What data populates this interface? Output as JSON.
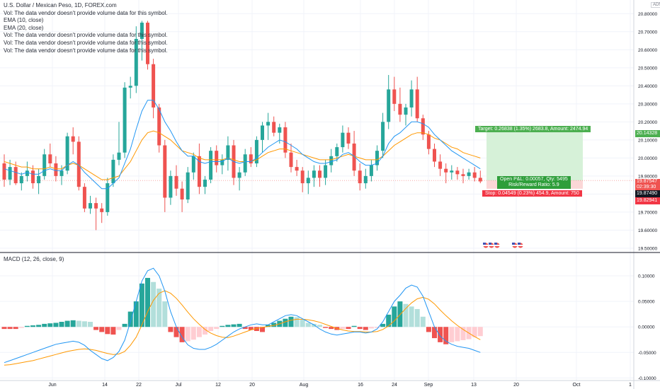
{
  "legend": {
    "title": "U.S. Dollar / Mexican Peso, 1D, FOREX.com",
    "lines": [
      "Vol: The data vendor doesn't provide volume data for this symbol.",
      "EMA (10, close)",
      "EMA (20, close)",
      "Vol: The data vendor doesn't provide volume data for this symbol.",
      "Vol: The data vendor doesn't provide volume data for this symbol.",
      "Vol: The data vendor doesn't provide volume data for this symbol."
    ],
    "macd_title": "MACD (12, 26, close, 9)"
  },
  "axis_tag": "ADN",
  "price_axis": {
    "ticks": [
      "20.80000",
      "20.70000",
      "20.60000",
      "20.50000",
      "20.40000",
      "20.30000",
      "20.20000",
      "20.10000",
      "20.00000",
      "19.90000",
      "19.80000",
      "19.70000",
      "19.60000",
      "19.50000"
    ],
    "current_price": "19.87547",
    "countdown": "02:39:30",
    "last_dark": "19.87490",
    "target_price": "20.14328",
    "stop_price": "19.82941"
  },
  "macd_axis": {
    "ticks": [
      "0.10000",
      "0.05000",
      "0.00000",
      "-0.05000",
      "-0.10000"
    ]
  },
  "time_axis": {
    "labels": [
      "Jun",
      "14",
      "22",
      "Jul",
      "12",
      "20",
      "Aug",
      "16",
      "24",
      "Sep",
      "13",
      "20",
      "Oct",
      "1"
    ]
  },
  "position": {
    "target": "Target: 0.26838 (1.35%) 2683.8, Amount: 2474.94",
    "open_pl": "Open P&L: 0.00057, Qty: 5495",
    "rr": "Risk/Reward Ratio: 5.9",
    "stop": "Stop: 0.04549 (0.23%) 454.9, Amount: 750"
  },
  "colors": {
    "up": "#26a69a",
    "down": "#ef5350",
    "ema10": "#2196f3",
    "ema20": "#ff9800",
    "macd_line": "#2196f3",
    "signal_line": "#ff9800",
    "hist_up_strong": "#26a69a",
    "hist_up_weak": "#b2dfdb",
    "hist_down_strong": "#ef5350",
    "hist_down_weak": "#ffcdd2",
    "target_zone": "#d6f1d8",
    "stop_zone": "#fbd7d7"
  },
  "chart_data": [
    {
      "type": "candlestick",
      "title": "U.S. Dollar / Mexican Peso, 1D, FOREX.com",
      "ylim": [
        19.48,
        20.86
      ],
      "candles": [
        {
          "o": 19.97,
          "h": 20.02,
          "l": 19.84,
          "c": 19.88
        },
        {
          "o": 19.88,
          "h": 19.99,
          "l": 19.85,
          "c": 19.95
        },
        {
          "o": 19.95,
          "h": 19.98,
          "l": 19.85,
          "c": 19.86
        },
        {
          "o": 19.86,
          "h": 19.92,
          "l": 19.82,
          "c": 19.9
        },
        {
          "o": 19.9,
          "h": 19.98,
          "l": 19.87,
          "c": 19.93
        },
        {
          "o": 19.93,
          "h": 19.96,
          "l": 19.83,
          "c": 19.86
        },
        {
          "o": 19.86,
          "h": 19.94,
          "l": 19.8,
          "c": 19.9
        },
        {
          "o": 19.9,
          "h": 20.05,
          "l": 19.88,
          "c": 20.02
        },
        {
          "o": 20.02,
          "h": 20.08,
          "l": 19.95,
          "c": 19.97
        },
        {
          "o": 19.97,
          "h": 20.01,
          "l": 19.87,
          "c": 19.9
        },
        {
          "o": 19.9,
          "h": 19.96,
          "l": 19.85,
          "c": 19.93
        },
        {
          "o": 19.93,
          "h": 20.14,
          "l": 19.91,
          "c": 20.12
        },
        {
          "o": 20.12,
          "h": 20.17,
          "l": 20.02,
          "c": 20.09
        },
        {
          "o": 20.09,
          "h": 20.12,
          "l": 19.82,
          "c": 19.84
        },
        {
          "o": 19.84,
          "h": 19.86,
          "l": 19.7,
          "c": 19.72
        },
        {
          "o": 19.72,
          "h": 19.79,
          "l": 19.69,
          "c": 19.75
        },
        {
          "o": 19.75,
          "h": 19.78,
          "l": 19.6,
          "c": 19.72
        },
        {
          "o": 19.72,
          "h": 19.75,
          "l": 19.64,
          "c": 19.7
        },
        {
          "o": 19.7,
          "h": 19.89,
          "l": 19.68,
          "c": 19.86
        },
        {
          "o": 19.86,
          "h": 20.02,
          "l": 19.84,
          "c": 19.99
        },
        {
          "o": 19.99,
          "h": 20.2,
          "l": 19.96,
          "c": 20.03
        },
        {
          "o": 20.03,
          "h": 20.42,
          "l": 20.0,
          "c": 20.39
        },
        {
          "o": 20.39,
          "h": 20.45,
          "l": 20.33,
          "c": 20.4
        },
        {
          "o": 20.4,
          "h": 20.73,
          "l": 20.36,
          "c": 20.66
        },
        {
          "o": 20.66,
          "h": 20.76,
          "l": 20.54,
          "c": 20.75
        },
        {
          "o": 20.75,
          "h": 20.76,
          "l": 20.49,
          "c": 20.52
        },
        {
          "o": 20.52,
          "h": 20.55,
          "l": 20.22,
          "c": 20.28
        },
        {
          "o": 20.28,
          "h": 20.3,
          "l": 20.03,
          "c": 20.07
        },
        {
          "o": 20.07,
          "h": 20.1,
          "l": 19.7,
          "c": 19.78
        },
        {
          "o": 19.78,
          "h": 19.93,
          "l": 19.74,
          "c": 19.9
        },
        {
          "o": 19.9,
          "h": 19.96,
          "l": 19.79,
          "c": 19.83
        },
        {
          "o": 19.83,
          "h": 19.87,
          "l": 19.7,
          "c": 19.77
        },
        {
          "o": 19.77,
          "h": 19.95,
          "l": 19.75,
          "c": 19.92
        },
        {
          "o": 19.92,
          "h": 20.03,
          "l": 19.88,
          "c": 20.01
        },
        {
          "o": 20.01,
          "h": 20.08,
          "l": 19.8,
          "c": 19.84
        },
        {
          "o": 19.84,
          "h": 19.9,
          "l": 19.8,
          "c": 19.88
        },
        {
          "o": 19.88,
          "h": 20.06,
          "l": 19.86,
          "c": 20.04
        },
        {
          "o": 20.04,
          "h": 20.07,
          "l": 19.92,
          "c": 19.96
        },
        {
          "o": 19.96,
          "h": 20.02,
          "l": 19.91,
          "c": 19.99
        },
        {
          "o": 19.99,
          "h": 20.12,
          "l": 19.93,
          "c": 20.07
        },
        {
          "o": 20.07,
          "h": 20.1,
          "l": 19.85,
          "c": 19.89
        },
        {
          "o": 19.89,
          "h": 19.95,
          "l": 19.82,
          "c": 19.92
        },
        {
          "o": 19.92,
          "h": 20.05,
          "l": 19.9,
          "c": 20.02
        },
        {
          "o": 20.02,
          "h": 20.06,
          "l": 19.95,
          "c": 19.97
        },
        {
          "o": 19.97,
          "h": 20.12,
          "l": 19.95,
          "c": 20.1
        },
        {
          "o": 20.1,
          "h": 20.2,
          "l": 20.03,
          "c": 20.18
        },
        {
          "o": 20.18,
          "h": 20.25,
          "l": 20.1,
          "c": 20.2
        },
        {
          "o": 20.2,
          "h": 20.23,
          "l": 20.12,
          "c": 20.14
        },
        {
          "o": 20.14,
          "h": 20.19,
          "l": 20.08,
          "c": 20.17
        },
        {
          "o": 20.17,
          "h": 20.2,
          "l": 20.0,
          "c": 20.03
        },
        {
          "o": 20.03,
          "h": 20.08,
          "l": 19.92,
          "c": 19.95
        },
        {
          "o": 19.95,
          "h": 19.99,
          "l": 19.9,
          "c": 19.93
        },
        {
          "o": 19.93,
          "h": 19.95,
          "l": 19.81,
          "c": 19.86
        },
        {
          "o": 19.86,
          "h": 19.93,
          "l": 19.8,
          "c": 19.89
        },
        {
          "o": 19.89,
          "h": 19.96,
          "l": 19.84,
          "c": 19.93
        },
        {
          "o": 19.93,
          "h": 19.96,
          "l": 19.84,
          "c": 19.89
        },
        {
          "o": 19.89,
          "h": 19.99,
          "l": 19.85,
          "c": 19.96
        },
        {
          "o": 19.96,
          "h": 20.05,
          "l": 19.92,
          "c": 20.01
        },
        {
          "o": 20.01,
          "h": 20.08,
          "l": 19.98,
          "c": 20.06
        },
        {
          "o": 20.06,
          "h": 20.18,
          "l": 20.03,
          "c": 20.14
        },
        {
          "o": 20.14,
          "h": 20.17,
          "l": 20.05,
          "c": 20.08
        },
        {
          "o": 20.08,
          "h": 20.15,
          "l": 19.9,
          "c": 19.93
        },
        {
          "o": 19.93,
          "h": 19.97,
          "l": 19.82,
          "c": 19.86
        },
        {
          "o": 19.86,
          "h": 19.94,
          "l": 19.83,
          "c": 19.9
        },
        {
          "o": 19.9,
          "h": 19.99,
          "l": 19.87,
          "c": 19.96
        },
        {
          "o": 19.96,
          "h": 20.07,
          "l": 19.93,
          "c": 20.04
        },
        {
          "o": 20.04,
          "h": 20.25,
          "l": 20.0,
          "c": 20.2
        },
        {
          "o": 20.2,
          "h": 20.46,
          "l": 20.16,
          "c": 20.38
        },
        {
          "o": 20.38,
          "h": 20.45,
          "l": 20.26,
          "c": 20.3
        },
        {
          "o": 20.3,
          "h": 20.39,
          "l": 20.2,
          "c": 20.24
        },
        {
          "o": 20.24,
          "h": 20.3,
          "l": 20.18,
          "c": 20.28
        },
        {
          "o": 20.28,
          "h": 20.43,
          "l": 20.23,
          "c": 20.38
        },
        {
          "o": 20.38,
          "h": 20.45,
          "l": 20.2,
          "c": 20.22
        },
        {
          "o": 20.22,
          "h": 20.24,
          "l": 20.1,
          "c": 20.13
        },
        {
          "o": 20.13,
          "h": 20.15,
          "l": 20.02,
          "c": 20.05
        },
        {
          "o": 20.05,
          "h": 20.08,
          "l": 19.95,
          "c": 19.98
        },
        {
          "o": 19.98,
          "h": 20.02,
          "l": 19.9,
          "c": 19.94
        },
        {
          "o": 19.94,
          "h": 19.97,
          "l": 19.86,
          "c": 19.92
        },
        {
          "o": 19.92,
          "h": 19.96,
          "l": 19.88,
          "c": 19.93
        },
        {
          "o": 19.93,
          "h": 19.95,
          "l": 19.88,
          "c": 19.91
        },
        {
          "o": 19.91,
          "h": 19.94,
          "l": 19.86,
          "c": 19.9
        },
        {
          "o": 19.9,
          "h": 19.94,
          "l": 19.88,
          "c": 19.92
        },
        {
          "o": 19.92,
          "h": 19.95,
          "l": 19.87,
          "c": 19.89
        },
        {
          "o": 19.89,
          "h": 19.93,
          "l": 19.86,
          "c": 19.87
        }
      ],
      "ema10": [
        19.94,
        19.93,
        19.92,
        19.91,
        19.92,
        19.91,
        19.91,
        19.93,
        19.94,
        19.93,
        19.93,
        19.96,
        19.98,
        19.96,
        19.92,
        19.89,
        19.86,
        19.83,
        19.83,
        19.86,
        19.89,
        19.97,
        20.05,
        20.16,
        20.26,
        20.32,
        20.32,
        20.27,
        20.2,
        20.15,
        20.09,
        20.04,
        20.01,
        20.01,
        19.98,
        19.97,
        19.98,
        19.98,
        19.98,
        20.0,
        19.98,
        19.97,
        19.98,
        19.98,
        20.0,
        20.03,
        20.06,
        20.08,
        20.1,
        20.09,
        20.07,
        20.05,
        20.02,
        20.0,
        19.98,
        19.97,
        19.97,
        19.98,
        19.99,
        20.02,
        20.03,
        20.01,
        19.98,
        19.96,
        19.96,
        19.97,
        20.01,
        20.08,
        20.12,
        20.14,
        20.17,
        20.2,
        20.2,
        20.19,
        20.17,
        20.13,
        20.1,
        20.07,
        20.04,
        20.02,
        20.0,
        19.98,
        19.96,
        19.94
      ],
      "ema20": [
        19.98,
        19.97,
        19.96,
        19.95,
        19.95,
        19.94,
        19.94,
        19.94,
        19.95,
        19.94,
        19.94,
        19.96,
        19.97,
        19.96,
        19.94,
        19.92,
        19.9,
        19.88,
        19.88,
        19.89,
        19.9,
        19.94,
        19.98,
        20.04,
        20.1,
        20.14,
        20.15,
        20.14,
        20.12,
        20.1,
        20.07,
        20.04,
        20.03,
        20.02,
        20.0,
        19.99,
        19.99,
        19.99,
        19.99,
        20.0,
        19.99,
        19.98,
        19.98,
        19.98,
        19.99,
        20.01,
        20.03,
        20.04,
        20.05,
        20.05,
        20.04,
        20.03,
        20.02,
        20.01,
        20.0,
        19.99,
        19.99,
        19.99,
        20.0,
        20.01,
        20.02,
        20.01,
        20.0,
        19.99,
        19.99,
        19.99,
        20.01,
        20.04,
        20.07,
        20.09,
        20.11,
        20.13,
        20.14,
        20.14,
        20.13,
        20.11,
        20.1,
        20.08,
        20.06,
        20.05,
        20.03,
        20.02,
        20.01,
        20.0
      ]
    },
    {
      "type": "macd",
      "title": "MACD (12, 26, close, 9)",
      "ylim": [
        -0.105,
        0.125
      ],
      "histogram": [
        -0.004,
        -0.004,
        -0.004,
        -0.002,
        0.002,
        0.003,
        0.004,
        0.006,
        0.007,
        0.008,
        0.01,
        0.012,
        0.013,
        0.012,
        0.011,
        0.01,
        -0.006,
        -0.01,
        -0.014,
        -0.015,
        -0.006,
        0.006,
        0.03,
        0.05,
        0.085,
        0.096,
        0.088,
        0.075,
        0.05,
        -0.01,
        -0.02,
        -0.03,
        -0.028,
        -0.025,
        -0.02,
        -0.015,
        -0.008,
        -0.004,
        0.002,
        0.004,
        0.005,
        0.006,
        -0.004,
        -0.006,
        -0.008,
        -0.01,
        0.004,
        0.008,
        0.012,
        0.016,
        0.02,
        0.019,
        0.014,
        0.008,
        0.006,
        0.004,
        -0.002,
        -0.004,
        -0.006,
        -0.004,
        -0.004,
        0.002,
        -0.004,
        -0.006,
        -0.003,
        -0.002,
        0.006,
        0.024,
        0.04,
        0.05,
        0.045,
        0.04,
        0.035,
        0.02,
        -0.01,
        -0.022,
        -0.03,
        -0.034,
        -0.03,
        -0.028,
        -0.026,
        -0.024,
        -0.02,
        -0.018
      ],
      "macd": [
        -0.07,
        -0.066,
        -0.062,
        -0.058,
        -0.054,
        -0.05,
        -0.046,
        -0.042,
        -0.038,
        -0.034,
        -0.032,
        -0.03,
        -0.028,
        -0.03,
        -0.036,
        -0.046,
        -0.054,
        -0.062,
        -0.066,
        -0.06,
        -0.048,
        -0.026,
        0.01,
        0.05,
        0.09,
        0.11,
        0.115,
        0.1,
        0.07,
        0.03,
        0.0,
        -0.02,
        -0.035,
        -0.042,
        -0.044,
        -0.044,
        -0.04,
        -0.034,
        -0.026,
        -0.018,
        -0.01,
        -0.004,
        0.0,
        0.004,
        0.006,
        0.004,
        0.004,
        0.01,
        0.016,
        0.022,
        0.024,
        0.022,
        0.016,
        0.01,
        0.004,
        -0.004,
        -0.01,
        -0.014,
        -0.016,
        -0.014,
        -0.012,
        -0.01,
        -0.01,
        -0.012,
        -0.01,
        -0.004,
        0.01,
        0.03,
        0.05,
        0.062,
        0.076,
        0.082,
        0.078,
        0.06,
        0.03,
        0.0,
        -0.018,
        -0.028,
        -0.034,
        -0.038,
        -0.04,
        -0.042,
        -0.046,
        -0.05
      ],
      "signal": [
        -0.075,
        -0.074,
        -0.072,
        -0.07,
        -0.068,
        -0.066,
        -0.063,
        -0.06,
        -0.057,
        -0.054,
        -0.051,
        -0.048,
        -0.046,
        -0.044,
        -0.043,
        -0.044,
        -0.046,
        -0.049,
        -0.052,
        -0.054,
        -0.053,
        -0.048,
        -0.036,
        -0.02,
        0.004,
        0.03,
        0.052,
        0.066,
        0.071,
        0.066,
        0.056,
        0.043,
        0.029,
        0.016,
        0.005,
        -0.005,
        -0.012,
        -0.017,
        -0.02,
        -0.021,
        -0.018,
        -0.014,
        -0.01,
        -0.006,
        -0.003,
        -0.001,
        0.001,
        0.003,
        0.006,
        0.01,
        0.013,
        0.015,
        0.015,
        0.014,
        0.012,
        0.009,
        0.005,
        0.001,
        -0.003,
        -0.006,
        -0.008,
        -0.009,
        -0.009,
        -0.01,
        -0.01,
        -0.009,
        -0.005,
        0.002,
        0.012,
        0.024,
        0.036,
        0.047,
        0.055,
        0.058,
        0.054,
        0.045,
        0.033,
        0.022,
        0.012,
        0.003,
        -0.005,
        -0.012,
        -0.019,
        -0.025
      ]
    }
  ]
}
